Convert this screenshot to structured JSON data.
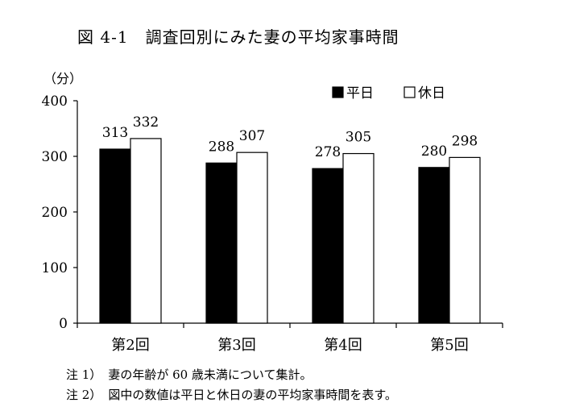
{
  "figure_title": "図 4-1　調査回別にみた妻の平均家事時間",
  "notes": [
    {
      "label": "注 1）",
      "text": "妻の年齢が 60 歳未満について集計。"
    },
    {
      "label": "注 2）",
      "text": "図中の数値は平日と休日の妻の平均家事時間を表す。"
    }
  ],
  "colors": {
    "weekday": "#000000",
    "holiday": "#ffffff",
    "stroke": "#000000"
  },
  "chart_data": {
    "type": "bar",
    "title": "調査回別にみた妻の平均家事時間",
    "ylabel": "（分）",
    "xlabel": "",
    "categories": [
      "第2回",
      "第3回",
      "第4回",
      "第5回"
    ],
    "series": [
      {
        "name": "平日",
        "values": [
          313,
          288,
          278,
          280
        ]
      },
      {
        "name": "休日",
        "values": [
          332,
          307,
          305,
          298
        ]
      }
    ],
    "ylim": [
      0,
      400
    ],
    "yticks": [
      0,
      100,
      200,
      300,
      400
    ],
    "legend_position": "top-right",
    "grid": false
  }
}
